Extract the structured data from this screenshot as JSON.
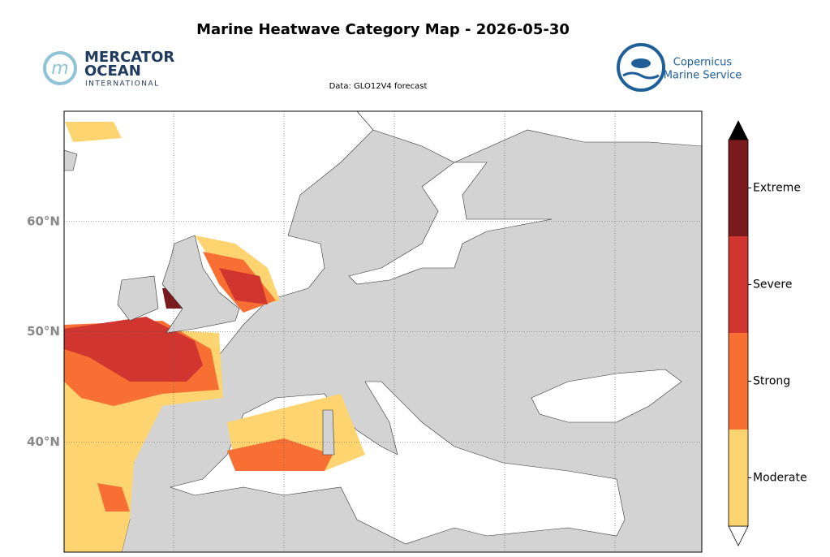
{
  "header": {
    "title": "Marine Heatwave Category Map - 2026-05-30",
    "source": "Data: GLO12V4 forecast"
  },
  "logos": {
    "mercator": [
      "MERCATOR",
      "OCEAN",
      "INTERNATIONAL"
    ],
    "copernicus": [
      "Copernicus",
      "Marine Service"
    ]
  },
  "map": {
    "ylim": [
      30,
      70
    ],
    "yticks": [
      {
        "value": 40,
        "label": "40°N"
      },
      {
        "value": 50,
        "label": "50°N"
      },
      {
        "value": 60,
        "label": "60°N"
      }
    ]
  },
  "colorbar": {
    "categories": [
      {
        "label": "Moderate",
        "color": "#fdd470"
      },
      {
        "label": "Strong",
        "color": "#f76f33"
      },
      {
        "label": "Severe",
        "color": "#d03530"
      },
      {
        "label": "Extreme",
        "color": "#7b1a1c"
      }
    ]
  }
}
